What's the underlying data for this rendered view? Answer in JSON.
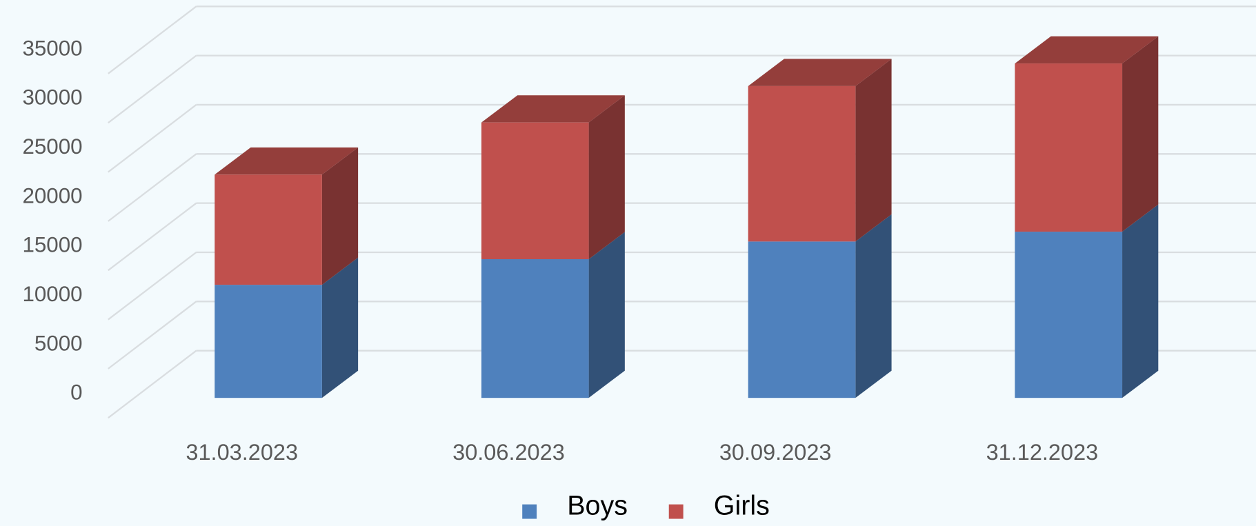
{
  "chart_data": {
    "type": "bar3d_stacked",
    "categories": [
      "31.03.2023",
      "30.06.2023",
      "30.09.2023",
      "31.12.2023"
    ],
    "series": [
      {
        "name": "Boys",
        "color": "#4f81bd",
        "values": [
          11500,
          14100,
          15900,
          16900
        ]
      },
      {
        "name": "Girls",
        "color": "#c0504d",
        "values": [
          11200,
          13900,
          15800,
          17100
        ]
      }
    ],
    "ylim": [
      0,
      35000
    ],
    "yticks": [
      0,
      5000,
      10000,
      15000,
      20000,
      25000,
      30000,
      35000
    ],
    "grid": true,
    "legend": "bottom"
  }
}
